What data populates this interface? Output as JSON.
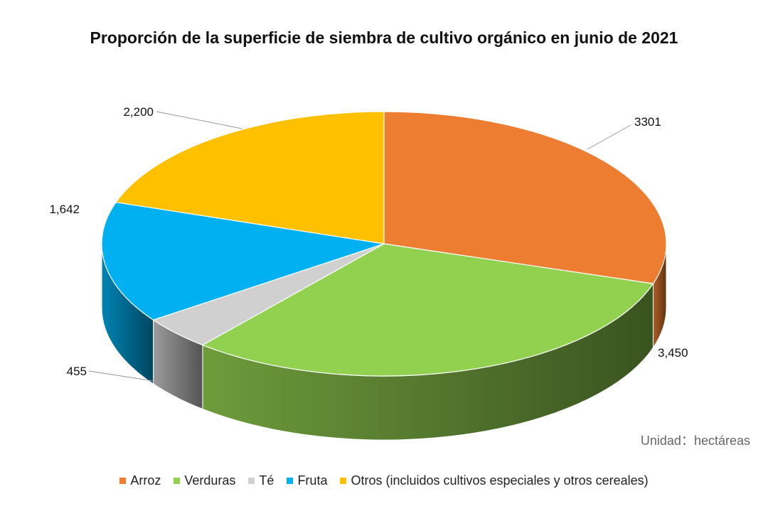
{
  "chart_data": {
    "type": "pie",
    "style": "3d",
    "title": "Proporción de la superficie de siembra de cultivo orgánico en junio de 2021",
    "unit_note": "Unidad：hectáreas",
    "legend_position": "bottom",
    "slices": [
      {
        "name": "Arroz",
        "value": 3301,
        "label": "3301",
        "color": "#ED7D31"
      },
      {
        "name": "Verduras",
        "value": 3450,
        "label": "3,450",
        "color": "#92D050"
      },
      {
        "name": "Té",
        "value": 455,
        "label": "455",
        "color": "#D0D0D0"
      },
      {
        "name": "Fruta",
        "value": 1642,
        "label": "1,642",
        "color": "#00B0F0"
      },
      {
        "name": "Otros (incluidos cultivos especiales y otros cereales)",
        "value": 2200,
        "label": "2,200",
        "color": "#FFC000"
      }
    ]
  }
}
